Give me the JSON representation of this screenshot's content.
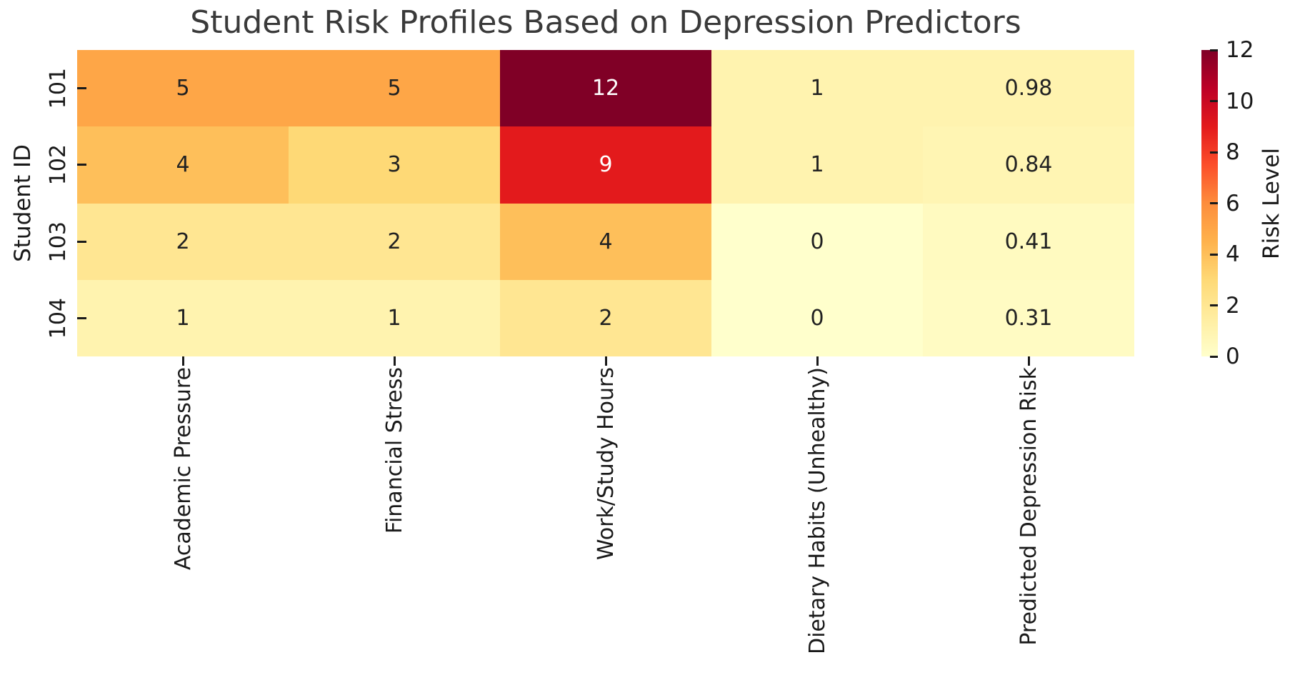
{
  "chart_data": {
    "type": "heatmap",
    "title": "Student Risk Profiles Based on Depression Predictors",
    "ylabel": "Student ID",
    "xlabel": "",
    "colorbar_label": "Risk Level",
    "x_categories": [
      "Academic Pressure",
      "Financial Stress",
      "Work/Study Hours",
      "Dietary Habits (Unhealthy)",
      "Predicted Depression Risk"
    ],
    "y_categories": [
      "101",
      "102",
      "103",
      "104"
    ],
    "values": [
      [
        5,
        5,
        12,
        1,
        0.98
      ],
      [
        4,
        3,
        9,
        1,
        0.84
      ],
      [
        2,
        2,
        4,
        0,
        0.41
      ],
      [
        1,
        1,
        2,
        0,
        0.31
      ]
    ],
    "cell_labels": [
      [
        "5",
        "5",
        "12",
        "1",
        "0.98"
      ],
      [
        "4",
        "3",
        "9",
        "1",
        "0.84"
      ],
      [
        "2",
        "2",
        "4",
        "0",
        "0.41"
      ],
      [
        "1",
        "1",
        "2",
        "0",
        "0.31"
      ]
    ],
    "vmin": 0,
    "vmax": 12,
    "colorbar_ticks": [
      0,
      2,
      4,
      6,
      8,
      10,
      12
    ],
    "colormap": {
      "name": "YlOrRd",
      "stops": [
        "#ffffcc",
        "#ffeda0",
        "#fed976",
        "#feb24c",
        "#fd8d3c",
        "#fc4e2a",
        "#e31a1c",
        "#bd0026",
        "#800026"
      ]
    },
    "grid": false,
    "legend_position": "colorbar-right",
    "annotations": true
  },
  "colors": {
    "background": "#ffffff",
    "title_text": "#3a3a3a",
    "tick_text": "#1a1a1a",
    "annot_dark": "#222222",
    "annot_light": "#ffffff",
    "tick_mark": "#1a1a1a"
  }
}
